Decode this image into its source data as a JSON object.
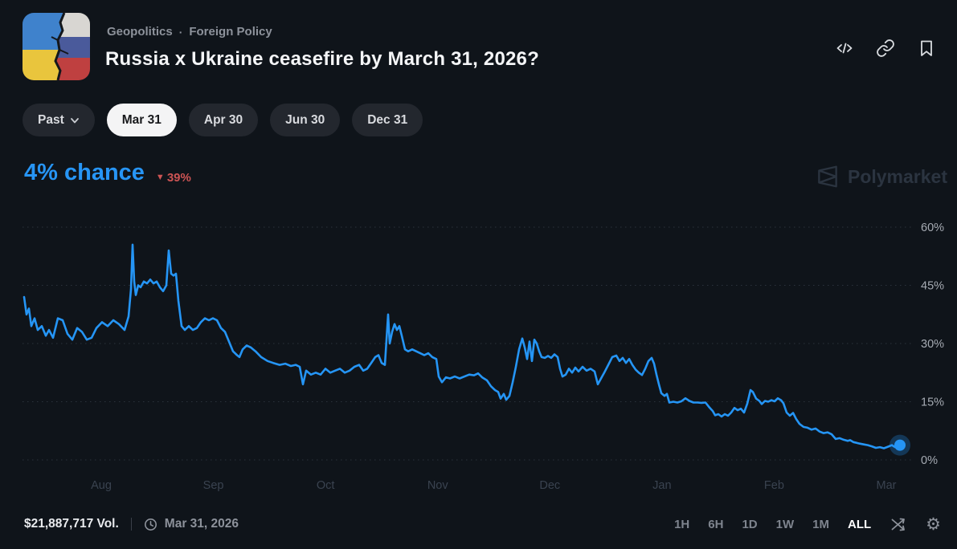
{
  "header": {
    "breadcrumb": {
      "category": "Geopolitics",
      "separator": "·",
      "subcategory": "Foreign Policy"
    },
    "title": "Russia x Ukraine ceasefire by March 31, 2026?",
    "icon_description": "cracked-wall-ukraine-russia-flags"
  },
  "tabs": {
    "past_label": "Past",
    "items": [
      {
        "label": "Mar 31",
        "selected": true
      },
      {
        "label": "Apr 30",
        "selected": false
      },
      {
        "label": "Jun 30",
        "selected": false
      },
      {
        "label": "Dec 31",
        "selected": false
      }
    ]
  },
  "price": {
    "chance": "4% chance",
    "delta_icon": "▼",
    "delta_value": "39%",
    "delta_direction": "down"
  },
  "watermark": {
    "label": "Polymarket"
  },
  "chart_data": {
    "type": "line",
    "series_name": "Mar 31",
    "current_value_pct": 4,
    "ylim": [
      0,
      60
    ],
    "y_ticks": [
      0,
      15,
      30,
      45,
      60
    ],
    "y_tick_labels": [
      "0%",
      "15%",
      "30%",
      "45%",
      "60%"
    ],
    "x_tick_labels": [
      "Aug",
      "Sep",
      "Oct",
      "Nov",
      "Dec",
      "Jan",
      "Feb",
      "Mar"
    ],
    "grid": "dotted-horizontal",
    "line_color": "#2595f5",
    "points": [
      [
        0,
        42
      ],
      [
        3,
        37.5
      ],
      [
        6,
        39
      ],
      [
        9,
        34.5
      ],
      [
        13,
        36.5
      ],
      [
        17,
        33.5
      ],
      [
        22,
        34.5
      ],
      [
        27,
        32
      ],
      [
        31,
        33.5
      ],
      [
        36,
        31.5
      ],
      [
        42,
        36.5
      ],
      [
        48,
        36
      ],
      [
        54,
        32.5
      ],
      [
        60,
        31
      ],
      [
        66,
        34
      ],
      [
        72,
        33
      ],
      [
        78,
        31
      ],
      [
        84,
        31.5
      ],
      [
        90,
        34
      ],
      [
        97,
        35.5
      ],
      [
        104,
        34.5
      ],
      [
        111,
        36
      ],
      [
        118,
        35
      ],
      [
        125,
        33.5
      ],
      [
        130,
        37
      ],
      [
        133,
        44
      ],
      [
        135,
        55.5
      ],
      [
        137,
        46
      ],
      [
        139,
        42.5
      ],
      [
        142,
        45
      ],
      [
        145,
        44.5
      ],
      [
        149,
        46
      ],
      [
        153,
        45.5
      ],
      [
        157,
        46.5
      ],
      [
        161,
        45.5
      ],
      [
        165,
        46
      ],
      [
        169,
        44.5
      ],
      [
        173,
        43.5
      ],
      [
        177,
        45
      ],
      [
        180,
        54
      ],
      [
        183,
        48
      ],
      [
        186,
        47.5
      ],
      [
        189,
        48
      ],
      [
        192,
        41
      ],
      [
        196,
        34.5
      ],
      [
        200,
        33.5
      ],
      [
        205,
        34.5
      ],
      [
        210,
        33.5
      ],
      [
        215,
        34
      ],
      [
        220,
        35.5
      ],
      [
        225,
        36.5
      ],
      [
        230,
        36
      ],
      [
        235,
        36.5
      ],
      [
        240,
        36
      ],
      [
        245,
        34
      ],
      [
        250,
        33
      ],
      [
        255,
        30.5
      ],
      [
        260,
        28
      ],
      [
        265,
        27
      ],
      [
        268,
        26.5
      ],
      [
        272,
        28.5
      ],
      [
        277,
        29.5
      ],
      [
        282,
        29
      ],
      [
        288,
        28
      ],
      [
        295,
        26.5
      ],
      [
        303,
        25.5
      ],
      [
        310,
        25
      ],
      [
        318,
        24.5
      ],
      [
        325,
        24.8
      ],
      [
        332,
        24.2
      ],
      [
        338,
        24.5
      ],
      [
        343,
        24
      ],
      [
        347,
        19.5
      ],
      [
        351,
        23
      ],
      [
        357,
        22
      ],
      [
        363,
        22.5
      ],
      [
        369,
        22
      ],
      [
        375,
        23.5
      ],
      [
        381,
        22.5
      ],
      [
        387,
        23
      ],
      [
        393,
        23.5
      ],
      [
        399,
        22.5
      ],
      [
        405,
        23
      ],
      [
        411,
        24
      ],
      [
        417,
        24.5
      ],
      [
        422,
        23
      ],
      [
        427,
        23.5
      ],
      [
        432,
        25
      ],
      [
        437,
        26.5
      ],
      [
        441,
        27
      ],
      [
        445,
        25
      ],
      [
        449,
        24.5
      ],
      [
        453,
        37.5
      ],
      [
        455,
        30
      ],
      [
        458,
        33
      ],
      [
        461,
        35
      ],
      [
        464,
        33.5
      ],
      [
        467,
        34.5
      ],
      [
        470,
        32
      ],
      [
        474,
        28.5
      ],
      [
        478,
        28
      ],
      [
        483,
        28.5
      ],
      [
        488,
        28
      ],
      [
        493,
        27.5
      ],
      [
        498,
        27
      ],
      [
        503,
        27.5
      ],
      [
        508,
        26.5
      ],
      [
        513,
        26
      ],
      [
        516,
        21.5
      ],
      [
        520,
        20
      ],
      [
        525,
        21.3
      ],
      [
        530,
        21
      ],
      [
        536,
        21.5
      ],
      [
        542,
        21
      ],
      [
        548,
        21.5
      ],
      [
        554,
        22
      ],
      [
        560,
        21.8
      ],
      [
        565,
        22.3
      ],
      [
        570,
        21.3
      ],
      [
        576,
        20.5
      ],
      [
        581,
        19
      ],
      [
        586,
        18
      ],
      [
        590,
        17.5
      ],
      [
        593,
        15.8
      ],
      [
        597,
        17
      ],
      [
        600,
        15.5
      ],
      [
        604,
        16.5
      ],
      [
        608,
        20
      ],
      [
        612,
        24
      ],
      [
        616,
        28.5
      ],
      [
        620,
        31.3
      ],
      [
        623,
        29
      ],
      [
        626,
        26
      ],
      [
        629,
        30.5
      ],
      [
        632,
        25.5
      ],
      [
        635,
        31
      ],
      [
        638,
        30
      ],
      [
        641,
        28
      ],
      [
        644,
        26.5
      ],
      [
        648,
        26.3
      ],
      [
        652,
        26.8
      ],
      [
        656,
        26.3
      ],
      [
        660,
        27.2
      ],
      [
        664,
        26.5
      ],
      [
        667,
        23.5
      ],
      [
        670,
        21.5
      ],
      [
        674,
        22
      ],
      [
        678,
        23.5
      ],
      [
        682,
        22.5
      ],
      [
        686,
        23.8
      ],
      [
        690,
        22.8
      ],
      [
        695,
        24
      ],
      [
        700,
        23
      ],
      [
        705,
        23.5
      ],
      [
        710,
        22.8
      ],
      [
        714,
        19.5
      ],
      [
        718,
        21
      ],
      [
        722,
        22.5
      ],
      [
        727,
        24.5
      ],
      [
        732,
        26.5
      ],
      [
        737,
        26.9
      ],
      [
        741,
        25.5
      ],
      [
        745,
        26.3
      ],
      [
        749,
        25
      ],
      [
        753,
        26
      ],
      [
        757,
        24.5
      ],
      [
        761,
        23.3
      ],
      [
        765,
        22.5
      ],
      [
        769,
        21.9
      ],
      [
        773,
        23.5
      ],
      [
        777,
        25.5
      ],
      [
        781,
        26.3
      ],
      [
        784,
        24.8
      ],
      [
        787,
        22
      ],
      [
        790,
        19.5
      ],
      [
        793,
        17.2
      ],
      [
        797,
        16.5
      ],
      [
        800,
        17
      ],
      [
        803,
        14.8
      ],
      [
        808,
        15
      ],
      [
        813,
        14.8
      ],
      [
        818,
        15.1
      ],
      [
        823,
        15.9
      ],
      [
        828,
        15.2
      ],
      [
        833,
        14.8
      ],
      [
        838,
        14.8
      ],
      [
        843,
        14.7
      ],
      [
        848,
        14.8
      ],
      [
        853,
        13.5
      ],
      [
        857,
        12.6
      ],
      [
        860,
        11.5
      ],
      [
        864,
        11.8
      ],
      [
        868,
        11.2
      ],
      [
        872,
        11.8
      ],
      [
        876,
        11.4
      ],
      [
        880,
        12.2
      ],
      [
        884,
        13.4
      ],
      [
        888,
        12.8
      ],
      [
        892,
        13.2
      ],
      [
        896,
        12.2
      ],
      [
        900,
        14.5
      ],
      [
        904,
        18
      ],
      [
        907,
        17.5
      ],
      [
        911,
        15.8
      ],
      [
        915,
        15.2
      ],
      [
        918,
        14.4
      ],
      [
        922,
        15.2
      ],
      [
        926,
        15
      ],
      [
        930,
        15.4
      ],
      [
        934,
        15.1
      ],
      [
        938,
        15.9
      ],
      [
        942,
        15.4
      ],
      [
        945,
        14.6
      ],
      [
        949,
        12.2
      ],
      [
        953,
        11.4
      ],
      [
        957,
        12.1
      ],
      [
        961,
        10.5
      ],
      [
        965,
        9.3
      ],
      [
        970,
        8.5
      ],
      [
        975,
        8.3
      ],
      [
        980,
        7.8
      ],
      [
        985,
        8.1
      ],
      [
        990,
        7.3
      ],
      [
        995,
        6.9
      ],
      [
        1000,
        7.1
      ],
      [
        1005,
        6.6
      ],
      [
        1010,
        5.4
      ],
      [
        1015,
        5.6
      ],
      [
        1020,
        5.2
      ],
      [
        1025,
        4.9
      ],
      [
        1028,
        5.1
      ],
      [
        1032,
        4.6
      ],
      [
        1036,
        4.4
      ],
      [
        1040,
        4.2
      ],
      [
        1045,
        4
      ],
      [
        1050,
        3.8
      ],
      [
        1055,
        3.5
      ],
      [
        1060,
        3.1
      ],
      [
        1065,
        3.3
      ],
      [
        1070,
        3
      ],
      [
        1075,
        3.4
      ],
      [
        1080,
        3.8
      ],
      [
        1084,
        3.3
      ],
      [
        1090,
        3.8
      ]
    ]
  },
  "footer": {
    "volume": "$21,887,717 Vol.",
    "date": "Mar 31, 2026",
    "timeframes": [
      "1H",
      "6H",
      "1D",
      "1W",
      "1M",
      "ALL"
    ],
    "selected_timeframe": "ALL",
    "gear_icon_char": "⚙"
  },
  "colors": {
    "background": "#0f141a",
    "accent_blue": "#2595f5",
    "delta_red": "#cd5454",
    "pill_bg": "#23272e",
    "pill_selected_bg": "#f4f4f5",
    "grid": "#2b323c",
    "y_tick_text": "#a6abb3",
    "x_tick_text": "#3a4350",
    "watermark_text": "#2b3440"
  }
}
